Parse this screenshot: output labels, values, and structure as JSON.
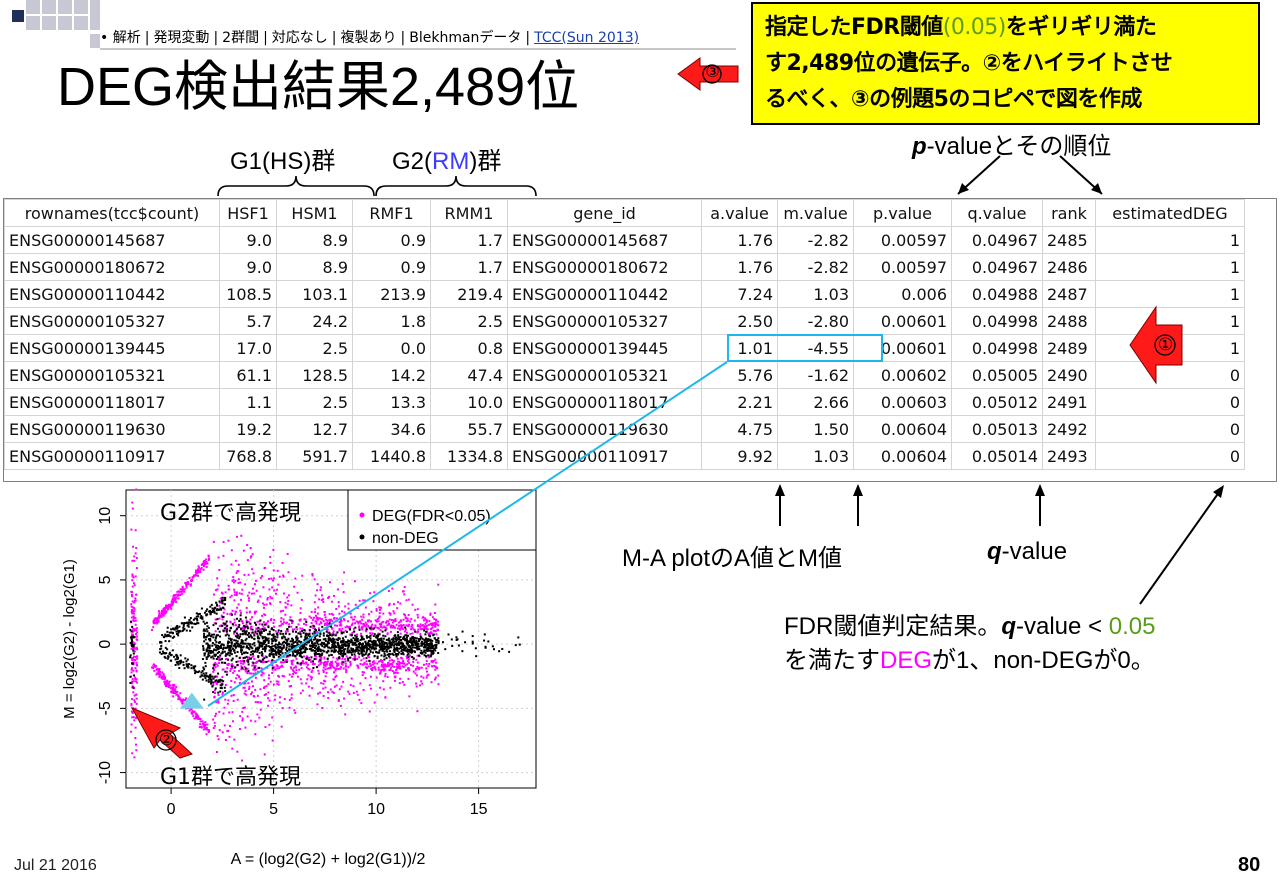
{
  "breadcrumb": {
    "items": [
      "解析",
      "発現変動",
      "2群間",
      "対応なし",
      "複製あり",
      "Blekhmanデータ"
    ],
    "link": "TCC(Sun 2013)"
  },
  "title": "DEG検出結果2,489位",
  "note": {
    "line1_a": "指定したFDR閾値",
    "line1_val": "(0.05)",
    "line1_b": "をギリギリ満た",
    "line2": "す2,489位の遺伝子。②をハイライトさせ",
    "line3": "るべく、③の例題5のコピペで図を作成"
  },
  "markers": {
    "m1": "①",
    "m2": "②",
    "m3": "③"
  },
  "group_labels": {
    "g1": "G1(HS)群",
    "g2_a": "G2(",
    "g2_b": "RM",
    "g2_c": ")群"
  },
  "pvalue_label": {
    "p": "p",
    "rest": "-valueとその順位"
  },
  "table": {
    "headers": [
      "rownames(tcc$count)",
      "HSF1",
      "HSM1",
      "RMF1",
      "RMM1",
      "gene_id",
      "a.value",
      "m.value",
      "p.value",
      "q.value",
      "rank",
      "estimatedDEG"
    ],
    "rows": [
      [
        "ENSG00000145687",
        "9.0",
        "8.9",
        "0.9",
        "1.7",
        "ENSG00000145687",
        "1.76",
        "-2.82",
        "0.00597",
        "0.04967",
        "2485",
        "1"
      ],
      [
        "ENSG00000180672",
        "9.0",
        "8.9",
        "0.9",
        "1.7",
        "ENSG00000180672",
        "1.76",
        "-2.82",
        "0.00597",
        "0.04967",
        "2486",
        "1"
      ],
      [
        "ENSG00000110442",
        "108.5",
        "103.1",
        "213.9",
        "219.4",
        "ENSG00000110442",
        "7.24",
        "1.03",
        "0.006",
        "0.04988",
        "2487",
        "1"
      ],
      [
        "ENSG00000105327",
        "5.7",
        "24.2",
        "1.8",
        "2.5",
        "ENSG00000105327",
        "2.50",
        "-2.80",
        "0.00601",
        "0.04998",
        "2488",
        "1"
      ],
      [
        "ENSG00000139445",
        "17.0",
        "2.5",
        "0.0",
        "0.8",
        "ENSG00000139445",
        "1.01",
        "-4.55",
        "0.00601",
        "0.04998",
        "2489",
        "1"
      ],
      [
        "ENSG00000105321",
        "61.1",
        "128.5",
        "14.2",
        "47.4",
        "ENSG00000105321",
        "5.76",
        "-1.62",
        "0.00602",
        "0.05005",
        "2490",
        "0"
      ],
      [
        "ENSG00000118017",
        "1.1",
        "2.5",
        "13.3",
        "10.0",
        "ENSG00000118017",
        "2.21",
        "2.66",
        "0.00603",
        "0.05012",
        "2491",
        "0"
      ],
      [
        "ENSG00000119630",
        "19.2",
        "12.7",
        "34.6",
        "55.7",
        "ENSG00000119630",
        "4.75",
        "1.50",
        "0.00604",
        "0.05013",
        "2492",
        "0"
      ],
      [
        "ENSG00000110917",
        "768.8",
        "591.7",
        "1440.8",
        "1334.8",
        "ENSG00000110917",
        "9.92",
        "1.03",
        "0.00604",
        "0.05014",
        "2493",
        "0"
      ]
    ]
  },
  "annotations": {
    "ma": "M-A plotのA値とM値",
    "q_bold": "q",
    "q_rest": "-value",
    "fdr_line1_a": "FDR閾値判定結果。",
    "fdr_line1_q": "q",
    "fdr_line1_b": "-value < ",
    "fdr_line1_val": "0.05",
    "fdr_line2_a": "を満たす",
    "fdr_line2_deg": "DEG",
    "fdr_line2_b": "が1、non-DEGが0。"
  },
  "plot": {
    "g2_label": "G2群で高発現",
    "g1_label": "G1群で高発現",
    "legend": [
      "DEG(FDR<0.05)",
      "non-DEG"
    ],
    "xlabel": "A = (log2(G2) + log2(G1))/2",
    "ylabel": "M = log2(G2) - log2(G1)",
    "xticks": [
      "0",
      "5",
      "10",
      "15"
    ],
    "yticks": [
      "10",
      "5",
      "0",
      "-5",
      "-10"
    ],
    "colors": {
      "deg": "#ff00ff",
      "nondeg": "#000000"
    }
  },
  "footer": {
    "date": "Jul 21 2016",
    "page": "80"
  }
}
